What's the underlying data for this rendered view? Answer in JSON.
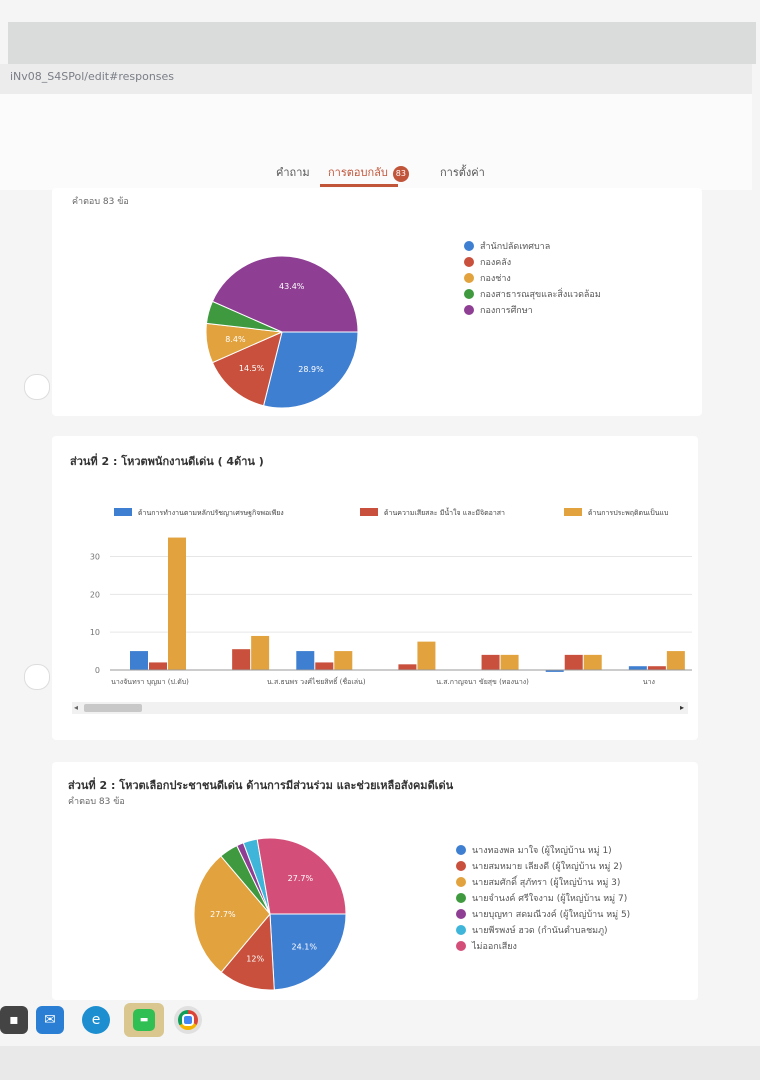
{
  "browser": {
    "url": "iNv08_S4SPol/edit#responses"
  },
  "tabs": [
    {
      "label": "คำถาม"
    },
    {
      "label": "การตอบกลับ",
      "badge": "83"
    },
    {
      "label": "การตั้งค่า"
    }
  ],
  "colors": {
    "blue": "#3f7fd1",
    "red": "#c8503c",
    "orange": "#e2a23e",
    "green": "#3f9a3f",
    "purple": "#8e3f94",
    "cyan": "#3fb6d9",
    "pink": "#d34f7a"
  },
  "card1": {
    "responses": "คำตอบ 83 ข้อ"
  },
  "card2": {
    "title": "ส่วนที่ 2 : โหวตพนักงานดีเด่น ( 4ด้าน )"
  },
  "card3": {
    "title": "ส่วนที่ 2 : โหวตเลือกประชาชนดีเด่น ด้านการมีส่วนร่วม และช่วยเหลือสังคมดีเด่น",
    "responses": "คำตอบ 83 ข้อ"
  },
  "chart_data": [
    {
      "type": "pie",
      "slices": [
        {
          "label": "สำนักปลัดเทศบาล",
          "value": 28.9,
          "display": "28.9%",
          "color": "#3f7fd1"
        },
        {
          "label": "กองคลัง",
          "value": 14.5,
          "display": "14.5%",
          "color": "#c8503c"
        },
        {
          "label": "กองช่าง",
          "value": 8.4,
          "display": "8.4%",
          "color": "#e2a23e"
        },
        {
          "label": "กองสาธารณสุขและสิ่งแวดล้อม",
          "value": 4.8,
          "display": "",
          "color": "#3f9a3f"
        },
        {
          "label": "กองการศึกษา",
          "value": 43.4,
          "display": "43.4%",
          "color": "#8e3f94"
        }
      ],
      "start": "blue slice begins at 3 o'clock, clockwise",
      "legend_position": "right"
    },
    {
      "type": "bar",
      "categories": [
        "นางจันทรา บุญมา (ป.ดับ)",
        "",
        "น.ส.ธนพร วงศ์ไชยสิทธิ์ (ชื่อเล่น)",
        "",
        "น.ส.กาญจนา ขัยสุข (ทองนาง)",
        "",
        "นาง"
      ],
      "series": [
        {
          "name": "ด้านการทำงานตามหลักปรัชญาเศรษฐกิจพอเพียง",
          "color": "#3f7fd1",
          "values": [
            5,
            0,
            5,
            0,
            0,
            -0.5,
            1
          ]
        },
        {
          "name": "ด้านความเสียสละ มีน้ำใจ และมีจิตอาสา",
          "color": "#c8503c",
          "values": [
            2,
            5.5,
            2,
            1.5,
            4,
            4,
            1
          ]
        },
        {
          "name": "ด้านการประพฤติตนเป็นแบ",
          "color": "#e2a23e",
          "values": [
            35,
            9,
            5,
            7.5,
            4,
            4,
            5
          ]
        }
      ],
      "yticks": [
        "0",
        "10",
        "20",
        "30"
      ],
      "ylim": [
        0,
        37
      ],
      "grid": true,
      "legend_position": "top"
    },
    {
      "type": "pie",
      "slices": [
        {
          "label": "นางทองพล มาใจ (ผู้ใหญ่บ้าน หมู่ 1)",
          "value": 24.1,
          "display": "24.1%",
          "color": "#3f7fd1"
        },
        {
          "label": "นายสมหมาย เลียงดี (ผู้ใหญ่บ้าน หมู่ 2)",
          "value": 12,
          "display": "12%",
          "color": "#c8503c"
        },
        {
          "label": "นายสมศักดิ์ สุภัทรา (ผู้ใหญ่บ้าน หมู่ 3)",
          "value": 27.7,
          "display": "27.7%",
          "color": "#e2a23e"
        },
        {
          "label": "นายจำนงค์ ศรีใจงาม (ผู้ใหญ่บ้าน หมู่ 7)",
          "value": 4,
          "display": "",
          "color": "#3f9a3f"
        },
        {
          "label": "นายบุญทา สดมณีวงค์ (ผู้ใหญ่บ้าน หมู่ 5)",
          "value": 1.5,
          "display": "",
          "color": "#8e3f94"
        },
        {
          "label": "นายพีรพงษ์ ฮวด (กำนันตำบลชมภู)",
          "value": 3,
          "display": "",
          "color": "#3fb6d9"
        },
        {
          "label": "ไม่ออกเสียง",
          "value": 27.7,
          "display": "27.7%",
          "color": "#d34f7a"
        }
      ],
      "start": "blue slice begins at 3 o'clock, clockwise",
      "legend_position": "right"
    }
  ]
}
